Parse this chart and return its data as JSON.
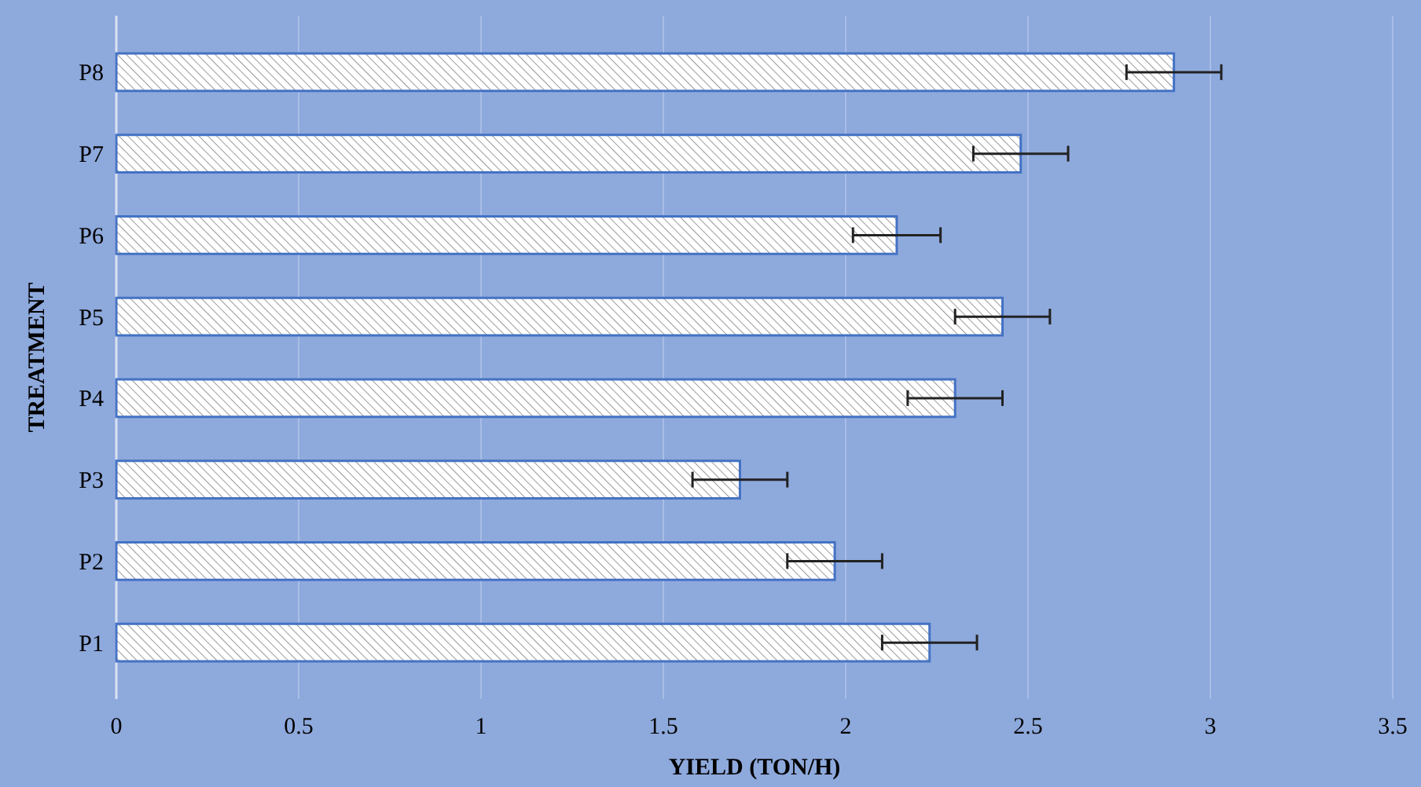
{
  "chart_data": {
    "type": "bar",
    "orientation": "horizontal",
    "xlabel": "YIELD (TON/H)",
    "ylabel": "TREATMENT",
    "categories": [
      "P8",
      "P7",
      "P6",
      "P5",
      "P4",
      "P3",
      "P2",
      "P1"
    ],
    "series": [
      {
        "color": "#4472c4",
        "values": [
          2.9,
          2.48,
          2.14,
          2.43,
          2.3,
          1.71,
          1.97,
          2.23
        ],
        "errors": [
          0.13,
          0.13,
          0.12,
          0.13,
          0.13,
          0.13,
          0.13,
          0.13
        ]
      }
    ],
    "xlim": [
      0,
      3.5
    ],
    "xticks": [
      0,
      0.5,
      1,
      1.5,
      2,
      2.5,
      3,
      3.5
    ],
    "grid": "x"
  }
}
